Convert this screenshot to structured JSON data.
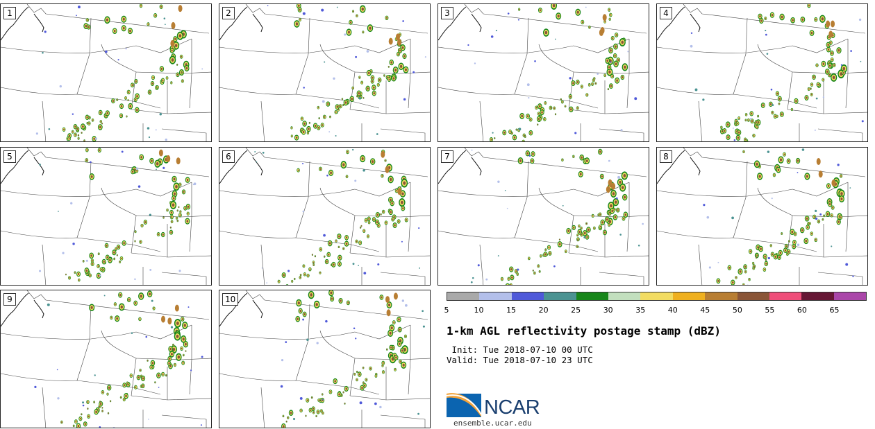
{
  "panels": [
    {
      "label": "1"
    },
    {
      "label": "2"
    },
    {
      "label": "3"
    },
    {
      "label": "4"
    },
    {
      "label": "5"
    },
    {
      "label": "6"
    },
    {
      "label": "7"
    },
    {
      "label": "8"
    },
    {
      "label": "9"
    },
    {
      "label": "10"
    }
  ],
  "colorbar": {
    "colors": [
      "#a9a9a9",
      "#b3bfea",
      "#4f59d9",
      "#4b9392",
      "#17861a",
      "#c2dfbe",
      "#f2dc62",
      "#efb01f",
      "#b87e33",
      "#8a5537",
      "#ef4e7a",
      "#661735",
      "#aa46a9"
    ],
    "ticks": [
      "5",
      "10",
      "15",
      "20",
      "25",
      "30",
      "35",
      "40",
      "45",
      "50",
      "55",
      "60",
      "65"
    ]
  },
  "title": "1-km AGL reflectivity postage stamp (dBZ)",
  "init": " Init: Tue 2018-07-10 00 UTC",
  "valid": "Valid: Tue 2018-07-10 23 UTC",
  "logo": {
    "text": "NCAR",
    "url": "ensemble.ucar.edu"
  }
}
